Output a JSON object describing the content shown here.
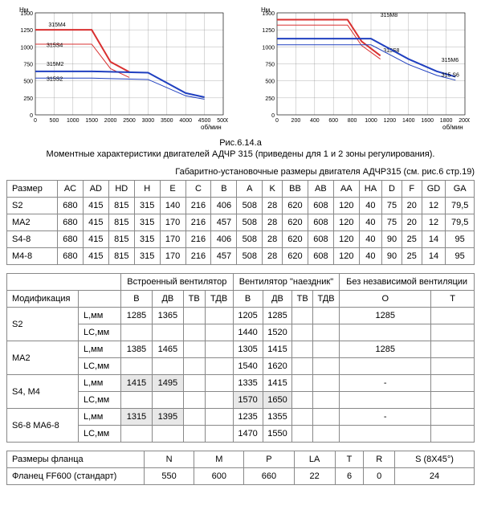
{
  "chart1": {
    "type": "line",
    "ylabel": "Нм",
    "xlabel": "об/мин",
    "xlim": [
      0,
      5000
    ],
    "xticks": [
      0,
      500,
      1000,
      1500,
      2000,
      2500,
      3000,
      3500,
      4000,
      4500,
      5000
    ],
    "ylim": [
      0,
      1500
    ],
    "yticks": [
      0,
      250,
      500,
      750,
      1000,
      1250,
      1500
    ],
    "grid_color": "#808080",
    "background_color": "#ffffff",
    "label_fontsize": 7,
    "series": [
      {
        "name": "315M4",
        "color": "#d93030",
        "width": 2,
        "points": [
          [
            0,
            1250
          ],
          [
            1500,
            1250
          ],
          [
            2000,
            780
          ],
          [
            2500,
            630
          ]
        ],
        "label_x": 350,
        "label_y": 1300
      },
      {
        "name": "315S4",
        "color": "#d93030",
        "width": 1,
        "points": [
          [
            0,
            1040
          ],
          [
            1500,
            1040
          ],
          [
            2000,
            680
          ],
          [
            2500,
            550
          ]
        ],
        "label_x": 300,
        "label_y": 1000
      },
      {
        "name": "315M2",
        "color": "#2040c0",
        "width": 2,
        "points": [
          [
            0,
            640
          ],
          [
            1500,
            640
          ],
          [
            3000,
            620
          ],
          [
            4000,
            320
          ],
          [
            4500,
            260
          ]
        ],
        "label_x": 300,
        "label_y": 720
      },
      {
        "name": "315S2",
        "color": "#2040c0",
        "width": 1,
        "points": [
          [
            0,
            540
          ],
          [
            1500,
            540
          ],
          [
            3000,
            520
          ],
          [
            4000,
            280
          ],
          [
            4500,
            230
          ]
        ],
        "label_x": 300,
        "label_y": 500
      }
    ]
  },
  "chart2": {
    "type": "line",
    "ylabel": "Нм",
    "xlabel": "об/мин",
    "xlim": [
      0,
      2000
    ],
    "xticks": [
      0,
      200,
      400,
      600,
      800,
      1000,
      1200,
      1400,
      1600,
      1800,
      2000
    ],
    "ylim": [
      0,
      1500
    ],
    "yticks": [
      0,
      250,
      500,
      750,
      1000,
      1250,
      1500
    ],
    "grid_color": "#808080",
    "background_color": "#ffffff",
    "label_fontsize": 7,
    "series": [
      {
        "name": "315M8",
        "color": "#d93030",
        "width": 2,
        "points": [
          [
            0,
            1400
          ],
          [
            750,
            1400
          ],
          [
            900,
            1080
          ],
          [
            1100,
            870
          ]
        ],
        "label_x": 1100,
        "label_y": 1440
      },
      {
        "name": "315S8",
        "color": "#d93030",
        "width": 1,
        "points": [
          [
            0,
            1320
          ],
          [
            750,
            1320
          ],
          [
            900,
            1020
          ],
          [
            1100,
            820
          ]
        ],
        "label_x": 1130,
        "label_y": 920
      },
      {
        "name": "315M6",
        "color": "#2040c0",
        "width": 2,
        "points": [
          [
            0,
            1120
          ],
          [
            1000,
            1120
          ],
          [
            1400,
            820
          ],
          [
            1700,
            640
          ],
          [
            1900,
            560
          ]
        ],
        "label_x": 1750,
        "label_y": 780
      },
      {
        "name": "315 S6",
        "color": "#2040c0",
        "width": 1,
        "points": [
          [
            0,
            1030
          ],
          [
            1000,
            1030
          ],
          [
            1400,
            740
          ],
          [
            1700,
            580
          ],
          [
            1900,
            510
          ]
        ],
        "label_x": 1750,
        "label_y": 560
      }
    ]
  },
  "caption": "Рис.6.14.а",
  "subtitle": "Моментные характеристики двигателей АДЧР 315 (приведены для 1 и 2 зоны регулирования).",
  "dims_title": "Габаритно-установочные размеры двигателя АДЧР315 (см. рис.6 стр.19)",
  "table1": {
    "columns": [
      "Размер",
      "AC",
      "AD",
      "HD",
      "H",
      "E",
      "C",
      "B",
      "A",
      "K",
      "BB",
      "AB",
      "AA",
      "HA",
      "D",
      "F",
      "GD",
      "GA"
    ],
    "rows": [
      [
        "S2",
        "680",
        "415",
        "815",
        "315",
        "140",
        "216",
        "406",
        "508",
        "28",
        "620",
        "608",
        "120",
        "40",
        "75",
        "20",
        "12",
        "79,5"
      ],
      [
        "MA2",
        "680",
        "415",
        "815",
        "315",
        "170",
        "216",
        "457",
        "508",
        "28",
        "620",
        "608",
        "120",
        "40",
        "75",
        "20",
        "12",
        "79,5"
      ],
      [
        "S4-8",
        "680",
        "415",
        "815",
        "315",
        "170",
        "216",
        "406",
        "508",
        "28",
        "620",
        "608",
        "120",
        "40",
        "90",
        "25",
        "14",
        "95"
      ],
      [
        "M4-8",
        "680",
        "415",
        "815",
        "315",
        "170",
        "216",
        "457",
        "508",
        "28",
        "620",
        "608",
        "120",
        "40",
        "90",
        "25",
        "14",
        "95"
      ]
    ]
  },
  "table2": {
    "group_headers": [
      "",
      "Встроенный вентилятор",
      "Вентилятор \"наездник\"",
      "Без независимой вентиляции"
    ],
    "columns": [
      "Модификация",
      "",
      "В",
      "ДВ",
      "ТВ",
      "ТДВ",
      "В",
      "ДВ",
      "ТВ",
      "ТДВ",
      "О",
      "Т"
    ],
    "rows": [
      {
        "mod": "S2",
        "sub1": "L,мм",
        "cells": [
          "1285",
          "1365",
          "",
          "",
          "1205",
          "1285",
          "",
          "",
          "1285",
          ""
        ]
      },
      {
        "mod": "",
        "sub1": "LC,мм",
        "cells": [
          "",
          "",
          "",
          "",
          "1440",
          "1520",
          "",
          "",
          "",
          ""
        ]
      },
      {
        "mod": "MA2",
        "sub1": "L,мм",
        "cells": [
          "1385",
          "1465",
          "",
          "",
          "1305",
          "1415",
          "",
          "",
          "1285",
          ""
        ]
      },
      {
        "mod": "",
        "sub1": "LC,мм",
        "cells": [
          "",
          "",
          "",
          "",
          "1540",
          "1620",
          "",
          "",
          "",
          ""
        ]
      },
      {
        "mod": "S4, M4",
        "sub1": "L,мм",
        "cells": [
          "1415",
          "1495",
          "",
          "",
          "1335",
          "1415",
          "",
          "",
          "-",
          ""
        ],
        "shade": [
          0,
          1
        ]
      },
      {
        "mod": "",
        "sub1": "LC,мм",
        "cells": [
          "",
          "",
          "",
          "",
          "1570",
          "1650",
          "",
          "",
          "",
          ""
        ],
        "shade": [
          4,
          5
        ]
      },
      {
        "mod": "S6-8 MA6-8",
        "sub1": "L,мм",
        "cells": [
          "1315",
          "1395",
          "",
          "",
          "1235",
          "1355",
          "",
          "",
          "-",
          ""
        ],
        "shade": [
          0,
          1
        ]
      },
      {
        "mod": "",
        "sub1": "LC,мм",
        "cells": [
          "",
          "",
          "",
          "",
          "1470",
          "1550",
          "",
          "",
          "",
          ""
        ]
      }
    ]
  },
  "table3": {
    "columns": [
      "Размеры фланца",
      "N",
      "M",
      "P",
      "LA",
      "T",
      "R",
      "S (8X45°)"
    ],
    "rows": [
      [
        "Фланец FF600 (стандарт)",
        "550",
        "600",
        "660",
        "22",
        "6",
        "0",
        "24"
      ]
    ]
  }
}
